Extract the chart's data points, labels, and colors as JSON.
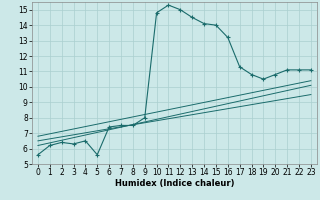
{
  "xlabel": "Humidex (Indice chaleur)",
  "background_color": "#cce8e8",
  "grid_color": "#aacfcf",
  "line_color": "#1a6b6b",
  "xlim": [
    -0.5,
    23.5
  ],
  "ylim": [
    5,
    15.5
  ],
  "yticks": [
    5,
    6,
    7,
    8,
    9,
    10,
    11,
    12,
    13,
    14,
    15
  ],
  "xticks": [
    0,
    1,
    2,
    3,
    4,
    5,
    6,
    7,
    8,
    9,
    10,
    11,
    12,
    13,
    14,
    15,
    16,
    17,
    18,
    19,
    20,
    21,
    22,
    23
  ],
  "main_line_x": [
    0,
    1,
    2,
    3,
    4,
    5,
    6,
    7,
    8,
    9,
    10,
    11,
    12,
    13,
    14,
    15,
    16,
    17,
    18,
    19,
    20,
    21,
    22,
    23
  ],
  "main_line_y": [
    5.6,
    6.2,
    6.4,
    6.3,
    6.5,
    5.6,
    7.4,
    7.5,
    7.5,
    8.0,
    14.8,
    15.3,
    15.0,
    14.5,
    14.1,
    14.0,
    13.2,
    11.3,
    10.8,
    10.5,
    10.8,
    11.1,
    11.1,
    11.1
  ],
  "line2_x": [
    0,
    23
  ],
  "line2_y": [
    6.2,
    10.1
  ],
  "line3_x": [
    0,
    23
  ],
  "line3_y": [
    6.5,
    9.5
  ],
  "line4_x": [
    0,
    23
  ],
  "line4_y": [
    6.8,
    10.4
  ],
  "xlabel_fontsize": 6.0,
  "tick_fontsize": 5.5
}
